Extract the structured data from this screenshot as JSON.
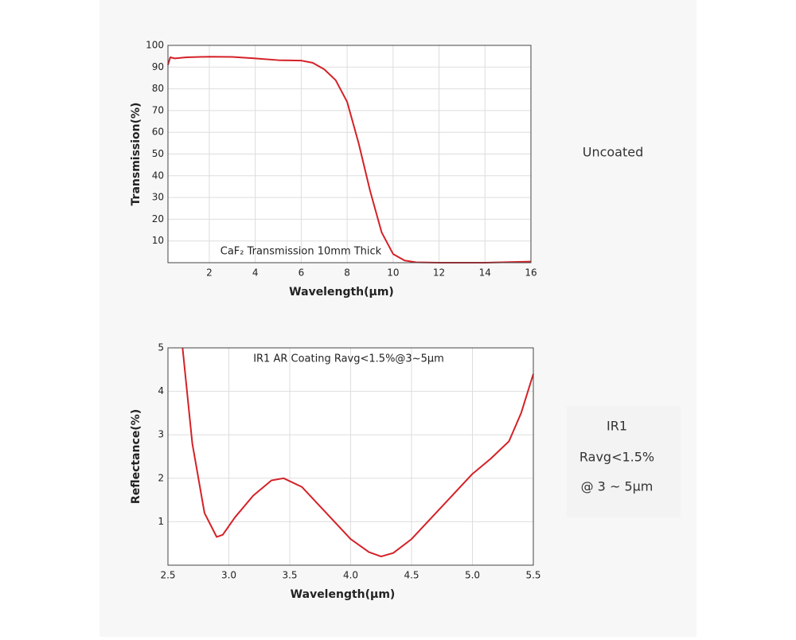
{
  "chart_data": [
    {
      "type": "line",
      "title": null,
      "annotation": "CaF₂ Transmission 10mm Thick",
      "x_label": "Wavelength(μm)",
      "y_label": "Transmission(%)",
      "color": "#d42127",
      "grid": true,
      "x": [
        0.2,
        0.3,
        0.5,
        1,
        2,
        3,
        4,
        5,
        6,
        6.5,
        7,
        7.5,
        8,
        8.5,
        9,
        9.5,
        10,
        10.5,
        11,
        12,
        14,
        16
      ],
      "values": [
        91,
        94.5,
        94,
        94.5,
        94.8,
        94.7,
        94,
        93.2,
        93,
        92,
        89,
        84,
        74,
        55,
        33,
        14,
        4,
        1,
        0.2,
        0,
        0,
        0.5
      ],
      "xlim": [
        0.2,
        16
      ],
      "xticks": [
        2,
        4,
        6,
        8,
        10,
        12,
        14,
        16
      ],
      "ylim": [
        0,
        100
      ],
      "yticks": [
        10,
        20,
        30,
        40,
        50,
        60,
        70,
        80,
        90,
        100
      ]
    },
    {
      "type": "line",
      "annotation": "IR1 AR Coating Ravg<1.5%@3~5μm",
      "x_label": "Wavelength(μm)",
      "y_label": "Reflectance(%)",
      "color": "#d42127",
      "grid": true,
      "x": [
        2.62,
        2.7,
        2.8,
        2.9,
        2.95,
        3.05,
        3.2,
        3.35,
        3.45,
        3.6,
        3.8,
        4.0,
        4.15,
        4.25,
        4.35,
        4.5,
        4.7,
        4.9,
        5.0,
        5.15,
        5.3,
        5.4,
        5.5
      ],
      "values": [
        5,
        2.8,
        1.2,
        0.65,
        0.7,
        1.1,
        1.6,
        1.95,
        2.0,
        1.8,
        1.2,
        0.6,
        0.3,
        0.2,
        0.28,
        0.6,
        1.2,
        1.8,
        2.1,
        2.45,
        2.85,
        3.5,
        4.4
      ],
      "xlim": [
        2.5,
        5.5
      ],
      "xticks": [
        2.5,
        {
          "value": 3,
          "label": "3.0"
        },
        3.5,
        {
          "value": 4,
          "label": "4.0"
        },
        4.5,
        {
          "value": 5,
          "label": "5.0"
        },
        5.5
      ],
      "ylim": [
        0,
        5
      ],
      "yticks": [
        1,
        2,
        3,
        4,
        5
      ]
    }
  ],
  "captions": {
    "top": "Uncoated",
    "bottom": [
      "IR1",
      "Ravg<1.5%",
      "@ 3 ~ 5μm"
    ]
  }
}
